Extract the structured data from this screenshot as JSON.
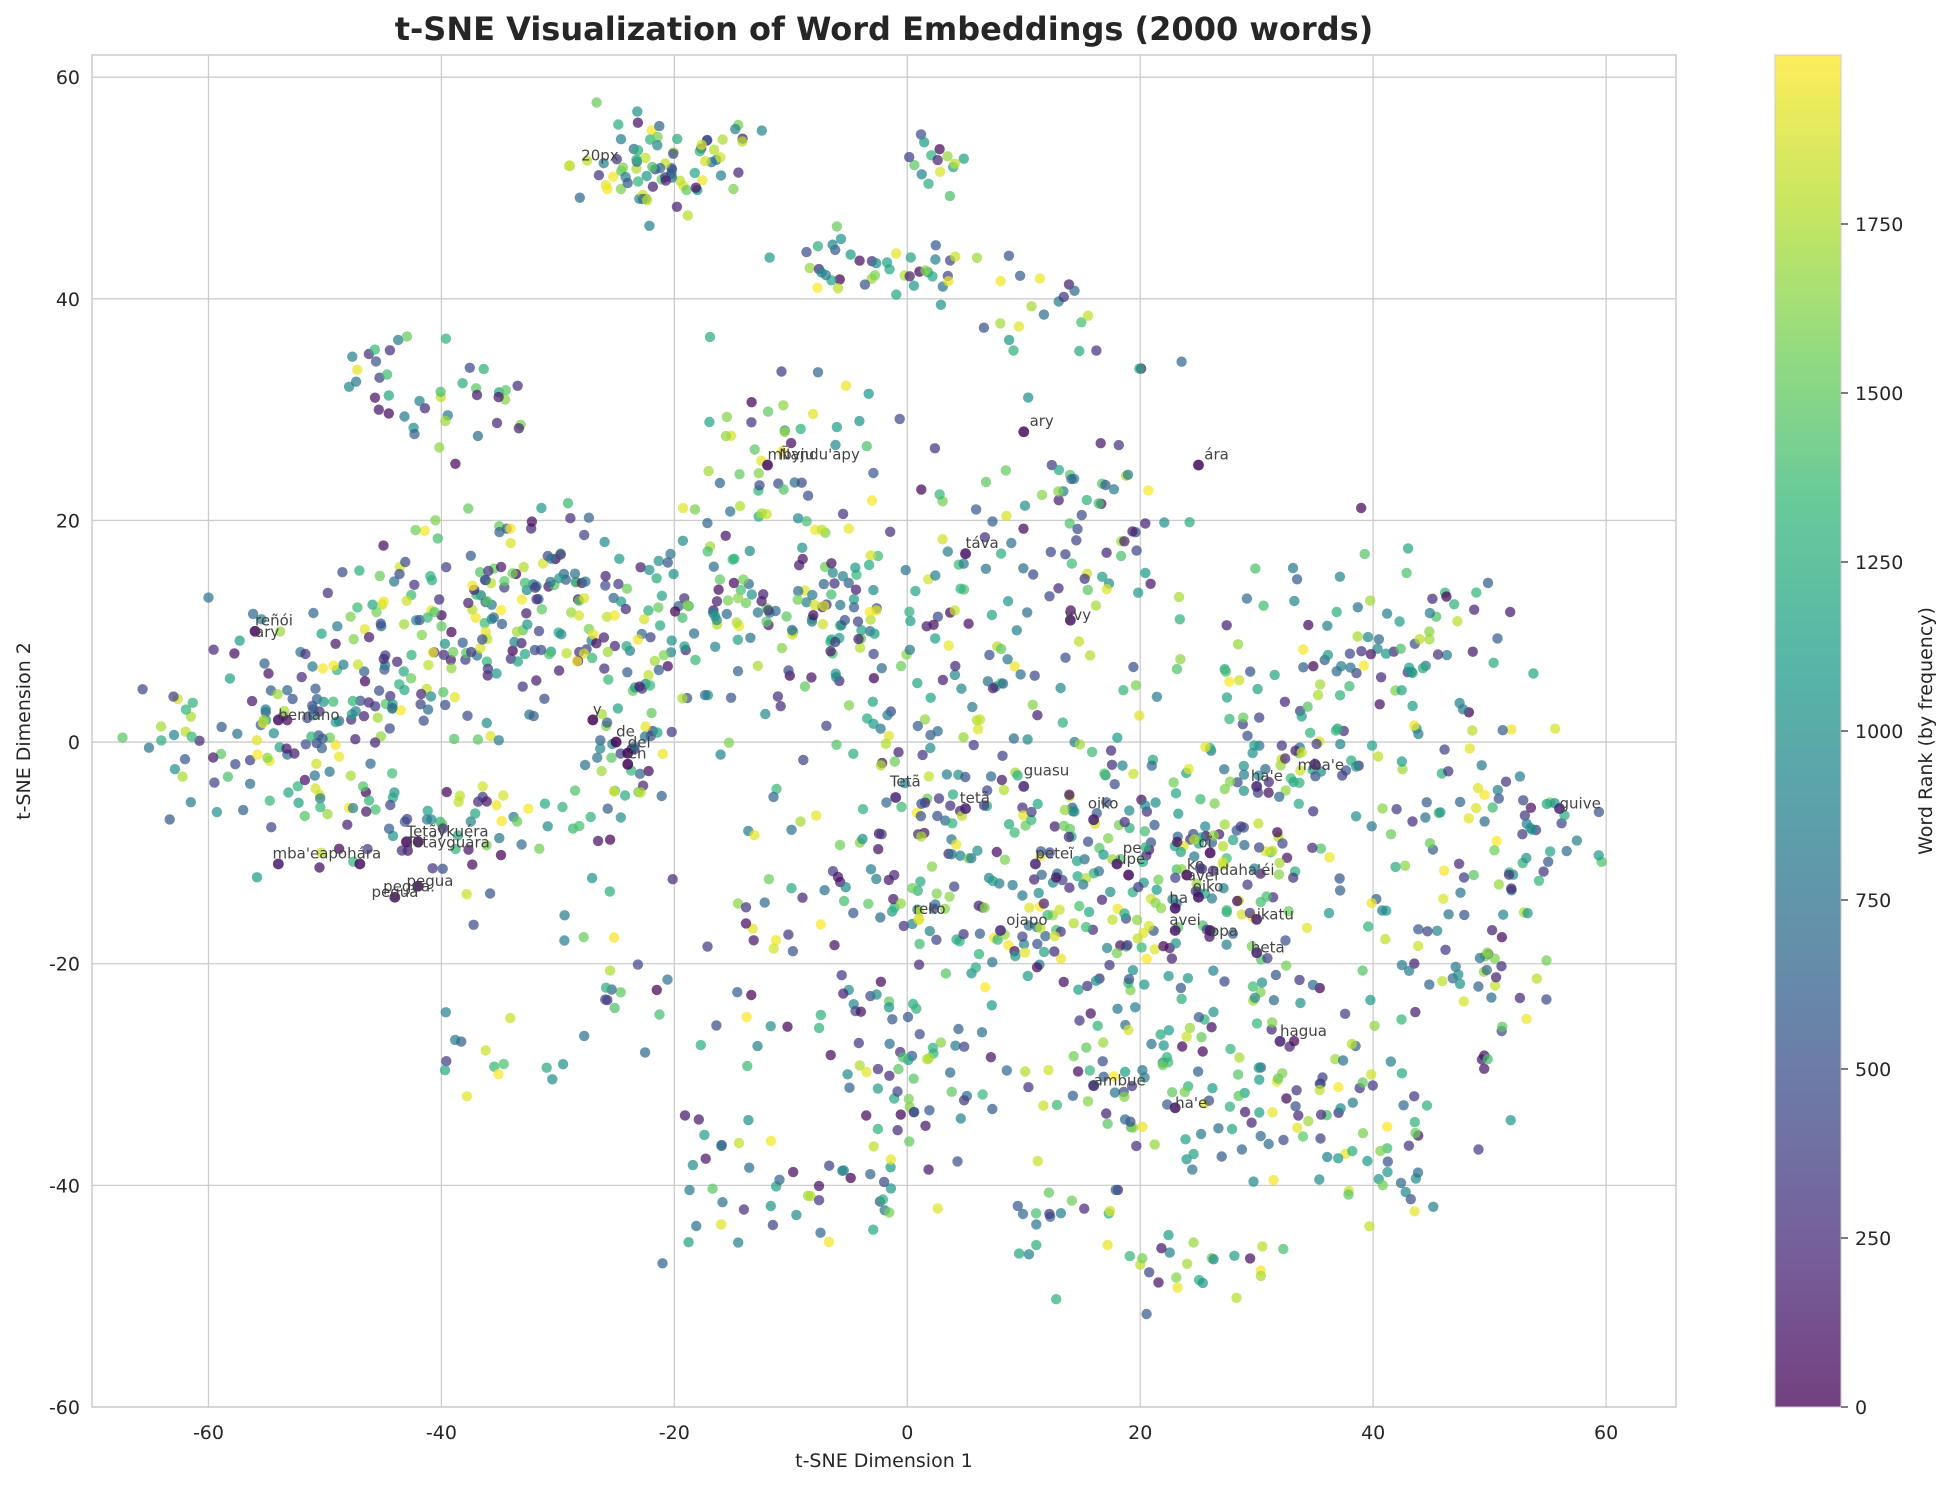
{
  "chart_data": {
    "type": "scatter",
    "title": "t-SNE Visualization of Word Embeddings (2000 words)",
    "xlabel": "t-SNE Dimension 1",
    "ylabel": "t-SNE Dimension 2",
    "xlim": [
      -70,
      66
    ],
    "ylim": [
      -60,
      62
    ],
    "xticks": [
      -60,
      -40,
      -20,
      0,
      20,
      40,
      60
    ],
    "yticks": [
      -60,
      -40,
      -20,
      0,
      20,
      40,
      60
    ],
    "grid": true,
    "point_count": 2000,
    "colorbar": {
      "label": "Word Rank (by frequency)",
      "colormap": "viridis",
      "range": [
        0,
        2000
      ],
      "ticks": [
        0,
        250,
        500,
        750,
        1000,
        1250,
        1500,
        1750
      ]
    },
    "colormap_stops": [
      "#440154",
      "#482878",
      "#3e4989",
      "#31688e",
      "#26828e",
      "#1f9e89",
      "#35b779",
      "#6ece58",
      "#b5de2b",
      "#fde725"
    ],
    "clusters": [
      {
        "cx": -22,
        "cy": 52,
        "sx": 3,
        "sy": 2.5,
        "n": 70
      },
      {
        "cx": -14,
        "cy": 54,
        "sx": 2,
        "sy": 1,
        "n": 10
      },
      {
        "cx": 2,
        "cy": 42,
        "sx": 4,
        "sy": 1.2,
        "n": 30
      },
      {
        "cx": 3,
        "cy": 52,
        "sx": 1.5,
        "sy": 1.2,
        "n": 15
      },
      {
        "cx": -7,
        "cy": 43,
        "sx": 2,
        "sy": 1.5,
        "n": 15
      },
      {
        "cx": -45,
        "cy": 33,
        "sx": 2.5,
        "sy": 3,
        "n": 22
      },
      {
        "cx": -37,
        "cy": 31,
        "sx": 3,
        "sy": 2,
        "n": 18
      },
      {
        "cx": -35,
        "cy": 12,
        "sx": 6,
        "sy": 5,
        "n": 150
      },
      {
        "cx": -24,
        "cy": 12,
        "sx": 5,
        "sy": 5,
        "n": 80
      },
      {
        "cx": -53,
        "cy": 0,
        "sx": 5,
        "sy": 5,
        "n": 130
      },
      {
        "cx": -45,
        "cy": 8,
        "sx": 4,
        "sy": 4,
        "n": 50
      },
      {
        "cx": -38,
        "cy": -8,
        "sx": 4,
        "sy": 4,
        "n": 50
      },
      {
        "cx": -25,
        "cy": -2,
        "sx": 2.5,
        "sy": 3,
        "n": 40
      },
      {
        "cx": -12,
        "cy": 12,
        "sx": 6,
        "sy": 6,
        "n": 90
      },
      {
        "cx": -6,
        "cy": 13,
        "sx": 2.5,
        "sy": 2,
        "n": 25
      },
      {
        "cx": 5,
        "cy": 10,
        "sx": 9,
        "sy": 9,
        "n": 130
      },
      {
        "cx": 15,
        "cy": 20,
        "sx": 4,
        "sy": 4,
        "n": 40
      },
      {
        "cx": -10,
        "cy": 28,
        "sx": 6,
        "sy": 4,
        "n": 30
      },
      {
        "cx": 13,
        "cy": 38,
        "sx": 4,
        "sy": 3,
        "n": 20
      },
      {
        "cx": 0,
        "cy": -8,
        "sx": 8,
        "sy": 7,
        "n": 110
      },
      {
        "cx": 15,
        "cy": -12,
        "sx": 7,
        "sy": 6,
        "n": 150
      },
      {
        "cx": 27,
        "cy": -12,
        "sx": 6,
        "sy": 6,
        "n": 130
      },
      {
        "cx": 35,
        "cy": 5,
        "sx": 6,
        "sy": 7,
        "n": 110
      },
      {
        "cx": 48,
        "cy": -10,
        "sx": 6,
        "sy": 8,
        "n": 80
      },
      {
        "cx": 50,
        "cy": -22,
        "sx": 3,
        "sy": 3,
        "n": 25
      },
      {
        "cx": 20,
        "cy": -30,
        "sx": 8,
        "sy": 5,
        "n": 110
      },
      {
        "cx": 35,
        "cy": -32,
        "sx": 5,
        "sy": 5,
        "n": 60
      },
      {
        "cx": 0,
        "cy": -30,
        "sx": 4,
        "sy": 5,
        "n": 50
      },
      {
        "cx": -10,
        "cy": -30,
        "sx": 6,
        "sy": 7,
        "n": 50
      },
      {
        "cx": 25,
        "cy": -47,
        "sx": 4,
        "sy": 2,
        "n": 25
      },
      {
        "cx": 42,
        "cy": -40,
        "sx": 2.5,
        "sy": 3,
        "n": 20
      },
      {
        "cx": -5,
        "cy": -42,
        "sx": 4,
        "sy": 2,
        "n": 15
      },
      {
        "cx": 12,
        "cy": -42,
        "sx": 3,
        "sy": 3,
        "n": 15
      },
      {
        "cx": -25,
        "cy": -20,
        "sx": 4,
        "sy": 4,
        "n": 20
      },
      {
        "cx": -35,
        "cy": -28,
        "sx": 3,
        "sy": 2,
        "n": 15
      },
      {
        "cx": 55,
        "cy": -8,
        "sx": 3,
        "sy": 4,
        "n": 20
      },
      {
        "cx": 44,
        "cy": 10,
        "sx": 4,
        "sy": 3,
        "n": 25
      },
      {
        "cx": -18,
        "cy": -40,
        "sx": 2,
        "sy": 3,
        "n": 10
      }
    ],
    "highlighted_points": [
      {
        "x": -29,
        "y": 52,
        "rank": 1800
      },
      {
        "x": -12,
        "y": 25,
        "rank": 50
      },
      {
        "x": 10,
        "y": 28,
        "rank": 80
      },
      {
        "x": 25,
        "y": 25,
        "rank": 60
      },
      {
        "x": 5,
        "y": 17,
        "rank": 100
      },
      {
        "x": 14,
        "y": 11,
        "rank": 120
      },
      {
        "x": -56,
        "y": 10,
        "rank": 40
      },
      {
        "x": -54,
        "y": 2,
        "rank": 90
      },
      {
        "x": -27,
        "y": 2,
        "rank": 30
      },
      {
        "x": -25,
        "y": 0,
        "rank": 20
      },
      {
        "x": -24,
        "y": -1,
        "rank": 25
      },
      {
        "x": -24,
        "y": -2,
        "rank": 15
      },
      {
        "x": -1,
        "y": -5,
        "rank": 200
      },
      {
        "x": 5,
        "y": -6,
        "rank": 180
      },
      {
        "x": 10,
        "y": -4,
        "rank": 220
      },
      {
        "x": 16,
        "y": -7,
        "rank": 150
      },
      {
        "x": 11,
        "y": -11,
        "rank": 210
      },
      {
        "x": 18,
        "y": -11,
        "rank": 110
      },
      {
        "x": 19,
        "y": -12,
        "rank": 70
      },
      {
        "x": 24,
        "y": -12,
        "rank": 60
      },
      {
        "x": 26,
        "y": -10,
        "rank": 50
      },
      {
        "x": 25,
        "y": -14,
        "rank": 90
      },
      {
        "x": 23,
        "y": -15,
        "rank": 80
      },
      {
        "x": 23,
        "y": -17,
        "rank": 130
      },
      {
        "x": 26,
        "y": -17,
        "rank": 140
      },
      {
        "x": 30,
        "y": -16,
        "rank": 160
      },
      {
        "x": 30,
        "y": -19,
        "rank": 170
      },
      {
        "x": 32,
        "y": -27,
        "rank": 190
      },
      {
        "x": 16,
        "y": -31,
        "rank": 230
      },
      {
        "x": 23,
        "y": -33,
        "rank": 120
      },
      {
        "x": 1,
        "y": -16,
        "rank": 1900
      },
      {
        "x": 8,
        "y": -17,
        "rank": 230
      },
      {
        "x": 30,
        "y": -4,
        "rank": 200
      },
      {
        "x": 35,
        "y": -2,
        "rank": 180
      },
      {
        "x": 56,
        "y": -6,
        "rank": 220
      },
      {
        "x": -43,
        "y": -9,
        "rank": 60
      },
      {
        "x": -42,
        "y": -9,
        "rank": 50
      },
      {
        "x": -54,
        "y": -11,
        "rank": 150
      },
      {
        "x": -47,
        "y": -11,
        "rank": 100
      },
      {
        "x": -42,
        "y": -13,
        "rank": 70
      },
      {
        "x": -44,
        "y": -14,
        "rank": 90
      }
    ],
    "annotations": [
      {
        "x": -28,
        "y": 52.5,
        "text": "20px"
      },
      {
        "x": -12,
        "y": 25.5,
        "text": "mbyju"
      },
      {
        "x": -11,
        "y": 25.5,
        "text": "Ñandu'apy"
      },
      {
        "x": 10.5,
        "y": 28.5,
        "text": "ary"
      },
      {
        "x": 25.5,
        "y": 25.5,
        "text": "ára"
      },
      {
        "x": 5,
        "y": 17.5,
        "text": "táva"
      },
      {
        "x": 13.5,
        "y": 11,
        "text": "yvy"
      },
      {
        "x": -56,
        "y": 10.5,
        "text": "reñói"
      },
      {
        "x": -56,
        "y": 9.5,
        "text": "ary"
      },
      {
        "x": -54,
        "y": 2,
        "text": "hemano"
      },
      {
        "x": -27,
        "y": 2.5,
        "text": "y"
      },
      {
        "x": -25,
        "y": 0.5,
        "text": "de"
      },
      {
        "x": -24,
        "y": -0.5,
        "text": "del"
      },
      {
        "x": -24,
        "y": -1.5,
        "text": "en"
      },
      {
        "x": -1.5,
        "y": -4,
        "text": "Tetã"
      },
      {
        "x": 4.5,
        "y": -5.5,
        "text": "tetã"
      },
      {
        "x": 10,
        "y": -3,
        "text": "guasu"
      },
      {
        "x": 15.5,
        "y": -6,
        "text": "oiko"
      },
      {
        "x": 11,
        "y": -10.5,
        "text": "peteĩ"
      },
      {
        "x": 18.5,
        "y": -10,
        "text": "pe"
      },
      {
        "x": 18,
        "y": -11,
        "text": "upe"
      },
      {
        "x": 24,
        "y": -11.5,
        "text": "ko"
      },
      {
        "x": 25,
        "y": -9.5,
        "text": "oĩ"
      },
      {
        "x": 24,
        "y": -12.5,
        "text": "avei"
      },
      {
        "x": 26,
        "y": -12,
        "text": "ndaha'éi"
      },
      {
        "x": 24.5,
        "y": -13.5,
        "text": "oiko"
      },
      {
        "x": 22.5,
        "y": -14.5,
        "text": "ha"
      },
      {
        "x": 22.5,
        "y": -16.5,
        "text": "avei"
      },
      {
        "x": 26,
        "y": -17.5,
        "text": "opa"
      },
      {
        "x": 30,
        "y": -16,
        "text": "ikatu"
      },
      {
        "x": 29.5,
        "y": -19,
        "text": "heta"
      },
      {
        "x": 32,
        "y": -26.5,
        "text": "hagua"
      },
      {
        "x": 16,
        "y": -31,
        "text": "ambue"
      },
      {
        "x": 23,
        "y": -33,
        "text": "ha'e"
      },
      {
        "x": 0.5,
        "y": -15.5,
        "text": "reko"
      },
      {
        "x": 8.5,
        "y": -16.5,
        "text": "ojapo"
      },
      {
        "x": 29.5,
        "y": -3.5,
        "text": "ha'e"
      },
      {
        "x": 33.5,
        "y": -2.5,
        "text": "mba'e"
      },
      {
        "x": 56,
        "y": -6,
        "text": "guive"
      },
      {
        "x": -43,
        "y": -8.5,
        "text": "Tetãykuéra"
      },
      {
        "x": -43,
        "y": -9.5,
        "text": "Tetãyguára"
      },
      {
        "x": -54.5,
        "y": -10.5,
        "text": "mba'eapohára"
      },
      {
        "x": -43,
        "y": -13,
        "text": "pegua"
      },
      {
        "x": -45,
        "y": -13.5,
        "text": "pegua."
      },
      {
        "x": -46,
        "y": -14,
        "text": "pegua"
      }
    ]
  }
}
